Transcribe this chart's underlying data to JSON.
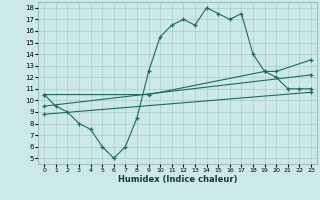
{
  "xlabel": "Humidex (Indice chaleur)",
  "bg_color": "#cce8e8",
  "grid_color": "#aacccc",
  "line_color": "#1a6b60",
  "xlim": [
    -0.5,
    23.5
  ],
  "ylim": [
    4.5,
    18.5
  ],
  "yticks": [
    5,
    6,
    7,
    8,
    9,
    10,
    11,
    12,
    13,
    14,
    15,
    16,
    17,
    18
  ],
  "xticks": [
    0,
    1,
    2,
    3,
    4,
    5,
    6,
    7,
    8,
    9,
    10,
    11,
    12,
    13,
    14,
    15,
    16,
    17,
    18,
    19,
    20,
    21,
    22,
    23
  ],
  "series1_x": [
    0,
    1,
    2,
    3,
    4,
    5,
    6,
    7,
    8,
    9,
    10,
    11,
    12,
    13,
    14,
    15,
    16,
    17,
    18,
    19,
    20,
    21,
    22,
    23
  ],
  "series1_y": [
    10.5,
    9.5,
    9.0,
    8.0,
    7.5,
    6.0,
    5.0,
    6.0,
    8.5,
    12.5,
    15.5,
    16.5,
    17.0,
    16.5,
    18.0,
    17.5,
    17.0,
    17.5,
    14.0,
    12.5,
    12.0,
    11.0,
    11.0,
    11.0
  ],
  "series2_x": [
    0,
    9,
    19,
    20,
    23
  ],
  "series2_y": [
    10.5,
    10.5,
    12.5,
    12.5,
    13.5
  ],
  "series3_x": [
    0,
    23
  ],
  "series3_y": [
    9.5,
    12.2
  ],
  "series4_x": [
    0,
    23
  ],
  "series4_y": [
    8.8,
    10.7
  ]
}
